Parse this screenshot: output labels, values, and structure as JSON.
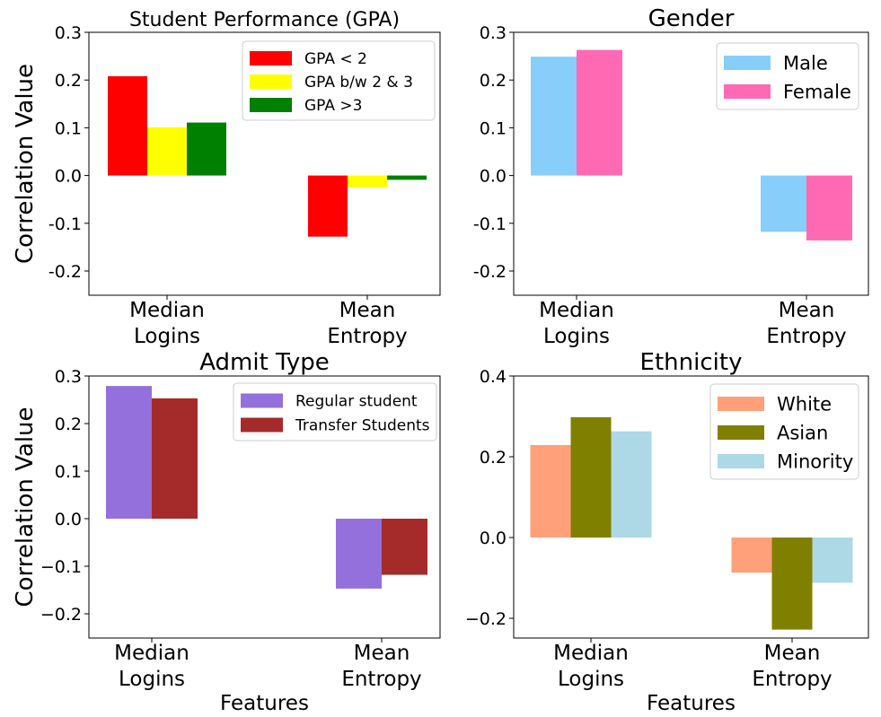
{
  "chart_data": [
    {
      "type": "bar",
      "title": "Student Performance (GPA)",
      "xlabel": "",
      "ylabel": "Correlation Value",
      "ylim": [
        -0.25,
        0.3
      ],
      "yticks": [
        "0.3",
        "0.2",
        "0.1",
        "0.0",
        "-0.1",
        "-0.2"
      ],
      "categories": [
        [
          "Median",
          "Logins"
        ],
        [
          "Mean",
          "Entropy"
        ]
      ],
      "series": [
        {
          "name": "GPA < 2",
          "color": "#ff0000",
          "values": [
            0.208,
            -0.128
          ]
        },
        {
          "name": "GPA b/w 2 & 3",
          "color": "#ffff00",
          "values": [
            0.101,
            -0.025
          ]
        },
        {
          "name": "GPA >3",
          "color": "#008000",
          "values": [
            0.111,
            -0.009
          ]
        }
      ],
      "legend": "top-right"
    },
    {
      "type": "bar",
      "title": "Gender",
      "xlabel": "",
      "ylabel": "",
      "ylim": [
        -0.25,
        0.3
      ],
      "yticks": [
        "0.3",
        "0.2",
        "0.1",
        "0.0",
        "-0.1",
        "-0.2"
      ],
      "categories": [
        [
          "Median",
          "Logins"
        ],
        [
          "Mean",
          "Entropy"
        ]
      ],
      "series": [
        {
          "name": "Male",
          "color": "#87cefa",
          "values": [
            0.249,
            -0.118
          ]
        },
        {
          "name": "Female",
          "color": "#ff69b4",
          "values": [
            0.263,
            -0.136
          ]
        }
      ],
      "legend": "top-right"
    },
    {
      "type": "bar",
      "title": "Admit Type",
      "xlabel": "Features",
      "ylabel": "Correlation Value",
      "ylim": [
        -0.25,
        0.3
      ],
      "yticks": [
        "0.3",
        "0.2",
        "0.1",
        "0.0",
        "−0.1",
        "−0.2"
      ],
      "categories": [
        [
          "Median",
          "Logins"
        ],
        [
          "Mean",
          "Entropy"
        ]
      ],
      "series": [
        {
          "name": "Regular student",
          "color": "#9370db",
          "values": [
            0.279,
            -0.147
          ]
        },
        {
          "name": "Transfer Students",
          "color": "#a52a2a",
          "values": [
            0.253,
            -0.118
          ]
        }
      ],
      "legend": "top-right"
    },
    {
      "type": "bar",
      "title": "Ethnicity",
      "xlabel": "Features",
      "ylabel": "",
      "ylim": [
        -0.25,
        0.4
      ],
      "yticks": [
        "0.4",
        "0.2",
        "0.0",
        "−0.2"
      ],
      "categories": [
        [
          "Median",
          "Logins"
        ],
        [
          "Mean",
          "Entropy"
        ]
      ],
      "series": [
        {
          "name": "White",
          "color": "#ffa07a",
          "values": [
            0.229,
            -0.087
          ]
        },
        {
          "name": "Asian",
          "color": "#808000",
          "values": [
            0.298,
            -0.228
          ]
        },
        {
          "name": "Minority",
          "color": "#add8e6",
          "values": [
            0.263,
            -0.112
          ]
        }
      ],
      "legend": "top-right"
    }
  ]
}
